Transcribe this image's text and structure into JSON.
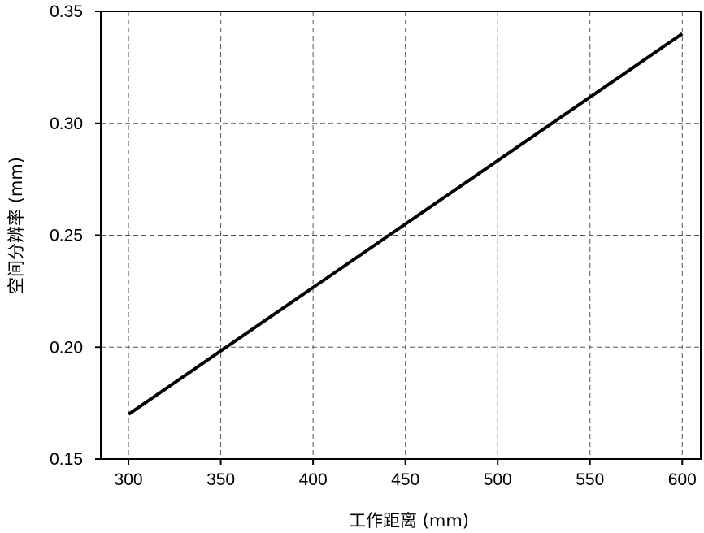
{
  "chart_data": {
    "type": "line",
    "xlabel": "工作距离 (mm)",
    "ylabel": "空间分辨率 (mm)",
    "xlim": [
      285,
      610
    ],
    "ylim": [
      0.15,
      0.35
    ],
    "x_ticks": [
      300,
      350,
      400,
      450,
      500,
      550,
      600
    ],
    "x_tick_labels": [
      "300",
      "350",
      "400",
      "450",
      "500",
      "550",
      "600"
    ],
    "y_ticks": [
      0.15,
      0.2,
      0.25,
      0.3,
      0.35
    ],
    "y_tick_labels": [
      "0.15",
      "0.20",
      "0.25",
      "0.30",
      "0.35"
    ],
    "grid": true,
    "grid_style": "dashed",
    "series": [
      {
        "x": [
          300,
          600
        ],
        "y": [
          0.17,
          0.34
        ],
        "color": "#000000"
      }
    ]
  }
}
